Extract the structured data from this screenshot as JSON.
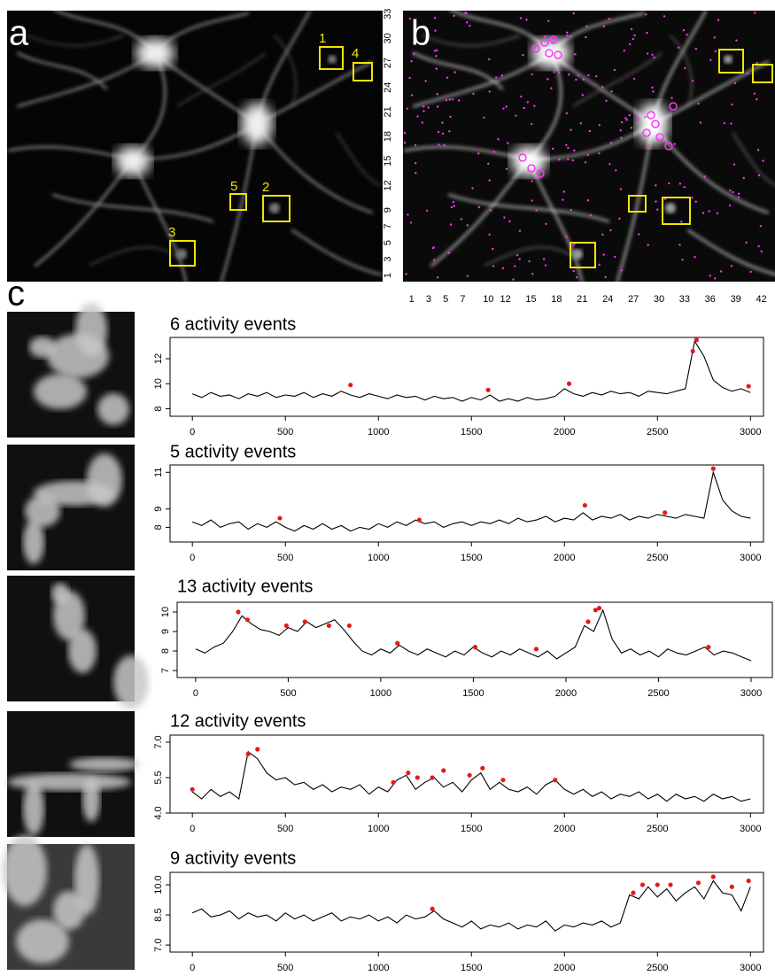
{
  "panel_a": {
    "label": "a",
    "boxes": [
      "1",
      "4",
      "5",
      "2",
      "3"
    ]
  },
  "panel_b": {
    "label": "b",
    "xlim": [
      0,
      43.6
    ],
    "ylim": [
      0.24,
      33.4
    ],
    "xticks": [
      1,
      3,
      5,
      7,
      10,
      12,
      15,
      18,
      21,
      24,
      27,
      30,
      33,
      36,
      39,
      42
    ],
    "yticks": [
      1,
      3,
      5,
      7,
      9,
      12,
      15,
      18,
      21,
      24,
      27,
      30,
      33
    ]
  },
  "panel_c": {
    "label": "c"
  },
  "chart_data": [
    {
      "type": "line",
      "title": "6 activity events",
      "x": [
        0,
        50,
        100,
        150,
        200,
        250,
        300,
        350,
        400,
        450,
        500,
        550,
        600,
        650,
        700,
        750,
        800,
        850,
        900,
        950,
        1000,
        1050,
        1100,
        1150,
        1200,
        1250,
        1300,
        1350,
        1400,
        1450,
        1500,
        1550,
        1600,
        1650,
        1700,
        1750,
        1800,
        1850,
        1900,
        1950,
        2000,
        2050,
        2100,
        2150,
        2200,
        2250,
        2300,
        2350,
        2400,
        2450,
        2500,
        2550,
        2600,
        2650,
        2700,
        2750,
        2800,
        2850,
        2900,
        2950,
        3000
      ],
      "series": [
        {
          "color": "#000000",
          "values": [
            9.2,
            8.9,
            9.3,
            9.0,
            9.1,
            8.8,
            9.2,
            9.0,
            9.3,
            8.9,
            9.1,
            9.0,
            9.3,
            8.9,
            9.2,
            9.0,
            9.4,
            9.1,
            8.9,
            9.2,
            9.0,
            8.8,
            9.1,
            8.9,
            9.0,
            8.7,
            9.0,
            8.8,
            8.9,
            8.6,
            8.9,
            8.7,
            9.1,
            8.6,
            8.8,
            8.6,
            8.9,
            8.7,
            8.8,
            9.0,
            9.6,
            9.2,
            9.0,
            9.3,
            9.1,
            9.4,
            9.2,
            9.3,
            9.0,
            9.4,
            9.3,
            9.2,
            9.4,
            9.6,
            13.4,
            12.2,
            10.3,
            9.7,
            9.4,
            9.6,
            9.3
          ]
        }
      ],
      "events": {
        "color": "#e41a1c",
        "x": [
          850,
          1590,
          2025,
          2690,
          2710,
          2990
        ],
        "y": [
          9.9,
          9.5,
          10.0,
          12.6,
          13.5,
          9.8
        ]
      },
      "xlim": [
        -120,
        3070
      ],
      "xticks": [
        0,
        500,
        1000,
        1500,
        2000,
        2500,
        3000
      ],
      "ylim": [
        7.4,
        13.7
      ],
      "yticks": [
        8,
        10,
        12
      ]
    },
    {
      "type": "line",
      "title": "5 activity events",
      "x": [
        0,
        50,
        100,
        150,
        200,
        250,
        300,
        350,
        400,
        450,
        500,
        550,
        600,
        650,
        700,
        750,
        800,
        850,
        900,
        950,
        1000,
        1050,
        1100,
        1150,
        1200,
        1250,
        1300,
        1350,
        1400,
        1450,
        1500,
        1550,
        1600,
        1650,
        1700,
        1750,
        1800,
        1850,
        1900,
        1950,
        2000,
        2050,
        2100,
        2150,
        2200,
        2250,
        2300,
        2350,
        2400,
        2450,
        2500,
        2550,
        2600,
        2650,
        2700,
        2750,
        2800,
        2850,
        2900,
        2950,
        3000
      ],
      "series": [
        {
          "color": "#000000",
          "values": [
            8.3,
            8.1,
            8.4,
            8.0,
            8.2,
            8.3,
            7.9,
            8.2,
            8.0,
            8.3,
            8.0,
            7.8,
            8.1,
            7.9,
            8.2,
            7.9,
            8.1,
            7.8,
            8.0,
            7.9,
            8.2,
            8.0,
            8.3,
            8.1,
            8.4,
            8.2,
            8.3,
            8.0,
            8.2,
            8.3,
            8.1,
            8.3,
            8.2,
            8.4,
            8.2,
            8.5,
            8.3,
            8.4,
            8.6,
            8.3,
            8.5,
            8.4,
            8.8,
            8.4,
            8.6,
            8.5,
            8.7,
            8.4,
            8.6,
            8.5,
            8.7,
            8.6,
            8.5,
            8.7,
            8.6,
            8.5,
            11.0,
            9.5,
            8.9,
            8.6,
            8.5
          ]
        }
      ],
      "events": {
        "color": "#e41a1c",
        "x": [
          470,
          1220,
          2110,
          2540,
          2800
        ],
        "y": [
          8.5,
          8.4,
          9.2,
          8.8,
          11.2
        ]
      },
      "xlim": [
        -120,
        3070
      ],
      "xticks": [
        0,
        500,
        1000,
        1500,
        2000,
        2500,
        3000
      ],
      "ylim": [
        7.2,
        11.4
      ],
      "yticks": [
        8,
        9,
        11
      ]
    },
    {
      "type": "line",
      "title": "13 activity events",
      "x": [
        0,
        50,
        100,
        150,
        200,
        250,
        300,
        350,
        400,
        450,
        500,
        550,
        600,
        650,
        700,
        750,
        800,
        850,
        900,
        950,
        1000,
        1050,
        1100,
        1150,
        1200,
        1250,
        1300,
        1350,
        1400,
        1450,
        1500,
        1550,
        1600,
        1650,
        1700,
        1750,
        1800,
        1850,
        1900,
        1950,
        2000,
        2050,
        2100,
        2150,
        2200,
        2250,
        2300,
        2350,
        2400,
        2450,
        2500,
        2550,
        2600,
        2650,
        2700,
        2750,
        2800,
        2850,
        2900,
        2950,
        3000
      ],
      "series": [
        {
          "color": "#000000",
          "values": [
            8.1,
            7.9,
            8.2,
            8.4,
            9.0,
            9.8,
            9.4,
            9.1,
            9.0,
            8.8,
            9.2,
            9.0,
            9.5,
            9.2,
            9.4,
            9.6,
            9.1,
            8.5,
            8.0,
            7.8,
            8.1,
            7.9,
            8.3,
            8.0,
            7.8,
            8.1,
            7.9,
            7.7,
            8.0,
            7.8,
            8.2,
            7.9,
            7.7,
            8.0,
            7.8,
            8.1,
            7.9,
            7.7,
            8.0,
            7.6,
            7.9,
            8.2,
            9.3,
            9.0,
            10.1,
            8.6,
            7.9,
            8.1,
            7.8,
            8.0,
            7.7,
            8.1,
            7.9,
            7.8,
            8.0,
            8.2,
            7.8,
            8.0,
            7.9,
            7.7,
            7.5
          ]
        }
      ],
      "events": {
        "color": "#e41a1c",
        "x": [
          230,
          280,
          490,
          590,
          720,
          830,
          1090,
          1510,
          1840,
          2120,
          2160,
          2180,
          2770
        ],
        "y": [
          10.0,
          9.6,
          9.3,
          9.5,
          9.3,
          9.3,
          8.4,
          8.2,
          8.1,
          9.5,
          10.1,
          10.2,
          8.2
        ]
      },
      "xlim": [
        -100,
        3115
      ],
      "xticks": [
        0,
        500,
        1000,
        1500,
        2000,
        2500,
        3000
      ],
      "ylim": [
        6.64,
        10.5
      ],
      "yticks": [
        7,
        8,
        9,
        10
      ]
    },
    {
      "type": "line",
      "title": "12 activity events",
      "x": [
        0,
        50,
        100,
        150,
        200,
        250,
        300,
        350,
        400,
        450,
        500,
        550,
        600,
        650,
        700,
        750,
        800,
        850,
        900,
        950,
        1000,
        1050,
        1100,
        1150,
        1200,
        1250,
        1300,
        1350,
        1400,
        1450,
        1500,
        1550,
        1600,
        1650,
        1700,
        1750,
        1800,
        1850,
        1900,
        1950,
        2000,
        2050,
        2100,
        2150,
        2200,
        2250,
        2300,
        2350,
        2400,
        2450,
        2500,
        2550,
        2600,
        2650,
        2700,
        2750,
        2800,
        2850,
        2900,
        2950,
        3000
      ],
      "series": [
        {
          "color": "#000000",
          "values": [
            4.9,
            4.6,
            5.0,
            4.7,
            4.9,
            4.6,
            6.6,
            6.3,
            5.7,
            5.4,
            5.5,
            5.2,
            5.3,
            5.0,
            5.2,
            4.9,
            5.1,
            5.0,
            5.2,
            4.8,
            5.1,
            4.9,
            5.4,
            5.6,
            5.0,
            5.3,
            5.5,
            5.1,
            5.3,
            4.9,
            5.4,
            5.7,
            5.0,
            5.3,
            5.0,
            4.9,
            5.1,
            4.8,
            5.2,
            5.4,
            5.0,
            4.8,
            5.0,
            4.7,
            4.9,
            4.6,
            4.8,
            4.7,
            4.9,
            4.6,
            4.8,
            4.5,
            4.8,
            4.6,
            4.7,
            4.5,
            4.8,
            4.6,
            4.7,
            4.5,
            4.6
          ]
        }
      ],
      "events": {
        "color": "#e41a1c",
        "x": [
          0,
          300,
          350,
          1080,
          1160,
          1210,
          1290,
          1350,
          1490,
          1560,
          1670,
          1950
        ],
        "y": [
          5.0,
          6.5,
          6.7,
          5.3,
          5.7,
          5.5,
          5.5,
          5.8,
          5.6,
          5.9,
          5.4,
          5.4
        ]
      },
      "xlim": [
        -120,
        3070
      ],
      "xticks": [
        0,
        500,
        1000,
        1500,
        2000,
        2500,
        3000
      ],
      "ylim": [
        4.0,
        7.3
      ],
      "yticks": [
        {
          "value": 4,
          "label": "4.0"
        },
        5.5,
        {
          "value": 7,
          "label": "7.0"
        }
      ]
    },
    {
      "type": "line",
      "title": "9 activity events",
      "x": [
        0,
        50,
        100,
        150,
        200,
        250,
        300,
        350,
        400,
        450,
        500,
        550,
        600,
        650,
        700,
        750,
        800,
        850,
        900,
        950,
        1000,
        1050,
        1100,
        1150,
        1200,
        1250,
        1300,
        1350,
        1400,
        1450,
        1500,
        1550,
        1600,
        1650,
        1700,
        1750,
        1800,
        1850,
        1900,
        1950,
        2000,
        2050,
        2100,
        2150,
        2200,
        2250,
        2300,
        2350,
        2400,
        2450,
        2500,
        2550,
        2600,
        2650,
        2700,
        2750,
        2800,
        2850,
        2900,
        2950,
        3000
      ],
      "series": [
        {
          "color": "#000000",
          "values": [
            8.6,
            8.8,
            8.4,
            8.5,
            8.7,
            8.3,
            8.6,
            8.4,
            8.5,
            8.2,
            8.6,
            8.3,
            8.5,
            8.2,
            8.4,
            8.6,
            8.2,
            8.4,
            8.3,
            8.5,
            8.2,
            8.4,
            8.1,
            8.5,
            8.3,
            8.4,
            8.7,
            8.3,
            8.1,
            7.9,
            8.2,
            7.8,
            8.0,
            7.9,
            8.1,
            7.8,
            8.0,
            7.9,
            8.2,
            7.7,
            8.0,
            7.9,
            8.1,
            8.0,
            8.2,
            7.9,
            8.1,
            9.5,
            9.3,
            9.9,
            9.4,
            9.8,
            9.2,
            9.6,
            9.9,
            9.3,
            10.2,
            9.6,
            9.5,
            8.7,
            9.9
          ]
        }
      ],
      "events": {
        "color": "#e41a1c",
        "x": [
          1290,
          2370,
          2420,
          2500,
          2570,
          2720,
          2800,
          2900,
          2990
        ],
        "y": [
          8.8,
          9.6,
          10.0,
          10.0,
          10.0,
          10.1,
          10.4,
          9.9,
          10.2
        ]
      },
      "xlim": [
        -120,
        3070
      ],
      "xticks": [
        0,
        500,
        1000,
        1500,
        2000,
        2500,
        3000
      ],
      "ylim": [
        6.65,
        10.62
      ],
      "yticks": [
        {
          "value": 7,
          "label": "7.0"
        },
        8.5,
        {
          "value": 10,
          "label": "10.0"
        }
      ]
    }
  ]
}
